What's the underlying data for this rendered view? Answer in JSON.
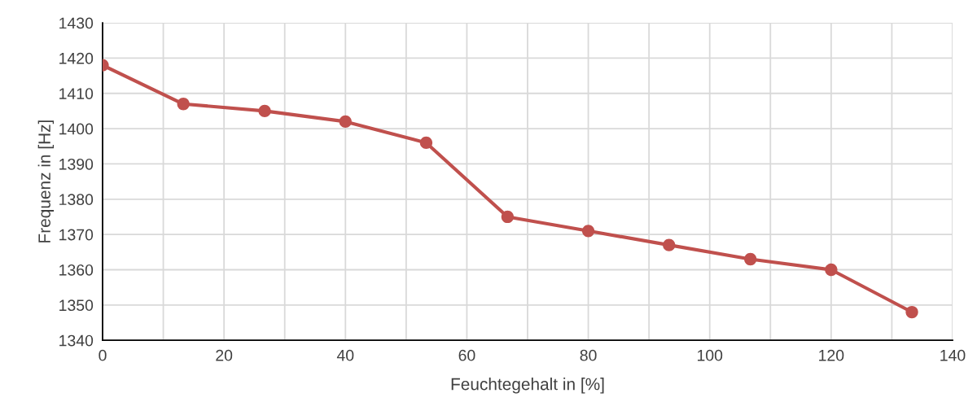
{
  "chart_data": {
    "type": "line",
    "xlabel": "Feuchtegehalt in [%]",
    "ylabel": "Frequenz in [Hz]",
    "x": [
      0,
      13.3,
      26.7,
      40,
      53.3,
      66.7,
      80,
      93.3,
      106.7,
      120,
      133.3
    ],
    "series": [
      {
        "color": "#c0504d",
        "values": [
          1418,
          1407,
          1405,
          1402,
          1396,
          1375,
          1371,
          1367,
          1363,
          1360,
          1348
        ]
      }
    ],
    "xlim": [
      0,
      140
    ],
    "xticks": [
      0,
      {
        "value": 10,
        "label": null
      },
      20,
      {
        "value": 30,
        "label": null
      },
      40,
      {
        "value": 50,
        "label": null
      },
      60,
      {
        "value": 70,
        "label": null
      },
      80,
      {
        "value": 90,
        "label": null
      },
      100,
      {
        "value": 110,
        "label": null
      },
      120,
      {
        "value": 130,
        "label": null
      },
      140
    ],
    "ylim": [
      1340,
      1430
    ],
    "yticks": [
      1340,
      1350,
      1360,
      1370,
      1380,
      1390,
      1400,
      1410,
      1420,
      1430
    ],
    "grid": true,
    "marker": "circle",
    "line_style": "solid"
  }
}
